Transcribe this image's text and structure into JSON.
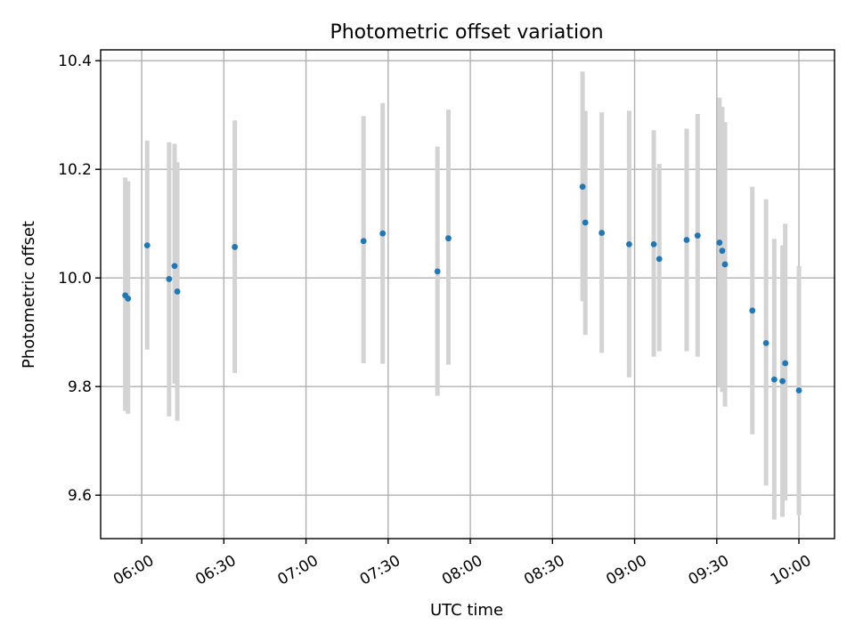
{
  "chart_data": {
    "type": "scatter",
    "title": "Photometric offset variation",
    "xlabel": "UTC time",
    "ylabel": "Photometric offset",
    "xlim": [
      "05:45",
      "10:13"
    ],
    "ylim": [
      9.52,
      10.42
    ],
    "x_ticks": [
      "06:00",
      "06:30",
      "07:00",
      "07:30",
      "08:00",
      "08:30",
      "09:00",
      "09:30",
      "10:00"
    ],
    "y_ticks": [
      "9.6",
      "9.8",
      "10.0",
      "10.2",
      "10.4"
    ],
    "grid": true,
    "error_bar_color": "#d3d3d3",
    "marker_color": "#1f77b4",
    "points": [
      {
        "x": "05:54",
        "y": 9.968,
        "err_low": 9.755,
        "err_high": 10.185
      },
      {
        "x": "05:55",
        "y": 9.962,
        "err_low": 9.75,
        "err_high": 10.178
      },
      {
        "x": "06:02",
        "y": 10.06,
        "err_low": 9.868,
        "err_high": 10.253
      },
      {
        "x": "06:10",
        "y": 9.998,
        "err_low": 9.745,
        "err_high": 10.25
      },
      {
        "x": "06:12",
        "y": 10.022,
        "err_low": 9.805,
        "err_high": 10.247
      },
      {
        "x": "06:13",
        "y": 9.975,
        "err_low": 9.737,
        "err_high": 10.213
      },
      {
        "x": "06:34",
        "y": 10.057,
        "err_low": 9.825,
        "err_high": 10.29
      },
      {
        "x": "07:21",
        "y": 10.068,
        "err_low": 9.843,
        "err_high": 10.298
      },
      {
        "x": "07:28",
        "y": 10.082,
        "err_low": 9.842,
        "err_high": 10.322
      },
      {
        "x": "07:48",
        "y": 10.012,
        "err_low": 9.783,
        "err_high": 10.242
      },
      {
        "x": "07:52",
        "y": 10.073,
        "err_low": 9.84,
        "err_high": 10.31
      },
      {
        "x": "08:41",
        "y": 10.168,
        "err_low": 9.957,
        "err_high": 10.38
      },
      {
        "x": "08:42",
        "y": 10.102,
        "err_low": 9.895,
        "err_high": 10.308
      },
      {
        "x": "08:48",
        "y": 10.083,
        "err_low": 9.862,
        "err_high": 10.305
      },
      {
        "x": "08:58",
        "y": 10.062,
        "err_low": 9.817,
        "err_high": 10.308
      },
      {
        "x": "09:07",
        "y": 10.062,
        "err_low": 9.855,
        "err_high": 10.272
      },
      {
        "x": "09:09",
        "y": 10.035,
        "err_low": 9.865,
        "err_high": 10.21
      },
      {
        "x": "09:19",
        "y": 10.07,
        "err_low": 9.865,
        "err_high": 10.275
      },
      {
        "x": "09:23",
        "y": 10.078,
        "err_low": 9.855,
        "err_high": 10.302
      },
      {
        "x": "09:31",
        "y": 10.065,
        "err_low": 9.8,
        "err_high": 10.332
      },
      {
        "x": "09:32",
        "y": 10.05,
        "err_low": 9.79,
        "err_high": 10.315
      },
      {
        "x": "09:33",
        "y": 10.025,
        "err_low": 9.763,
        "err_high": 10.287
      },
      {
        "x": "09:43",
        "y": 9.94,
        "err_low": 9.712,
        "err_high": 10.168
      },
      {
        "x": "09:48",
        "y": 9.88,
        "err_low": 9.618,
        "err_high": 10.145
      },
      {
        "x": "09:51",
        "y": 9.813,
        "err_low": 9.555,
        "err_high": 10.072
      },
      {
        "x": "09:54",
        "y": 9.81,
        "err_low": 9.56,
        "err_high": 10.06
      },
      {
        "x": "09:55",
        "y": 9.843,
        "err_low": 9.59,
        "err_high": 10.1
      },
      {
        "x": "10:00",
        "y": 9.793,
        "err_low": 9.563,
        "err_high": 10.022
      }
    ]
  }
}
